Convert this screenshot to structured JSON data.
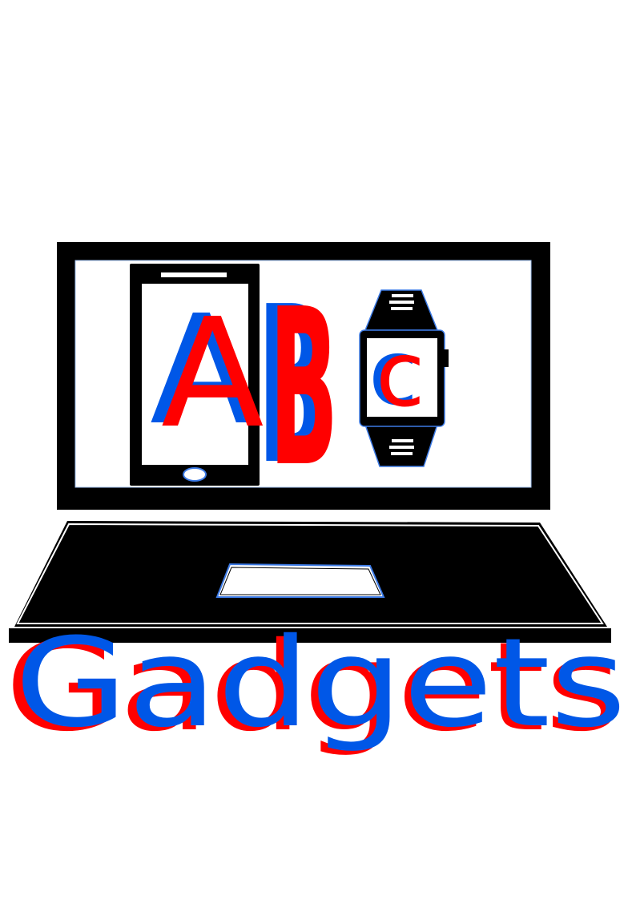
{
  "logo": {
    "letters": {
      "a": "A",
      "b": "B",
      "c": "c"
    },
    "wordmark": "Gadgets"
  },
  "colors": {
    "red": "#ff0000",
    "blue": "#0057e7",
    "black": "#000000",
    "white": "#ffffff",
    "outline_blue": "#3d7be6"
  },
  "icons": [
    "laptop-icon",
    "smartphone-icon",
    "smartwatch-icon",
    "touchpad-icon"
  ]
}
